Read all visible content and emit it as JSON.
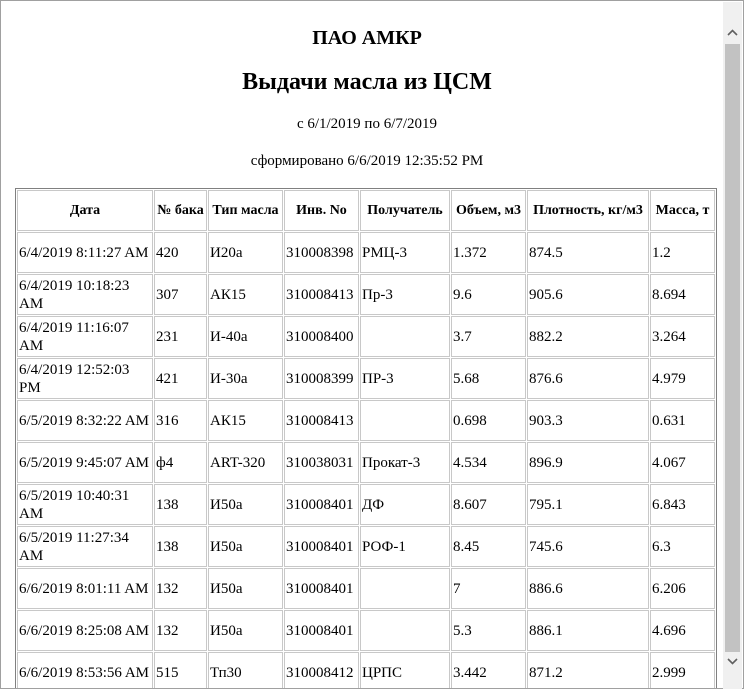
{
  "report": {
    "company": "ПАО АМКР",
    "title": "Выдачи масла из ЦСМ",
    "period": "с 6/1/2019 по 6/7/2019",
    "generated": "сформировано 6/6/2019 12:35:52 PM"
  },
  "table": {
    "columns": [
      "Дата",
      "№ бака",
      "Тип масла",
      "Инв. No",
      "Получатель",
      "Объем, м3",
      "Плотность, кг/м3",
      "Масса, т"
    ],
    "rows": [
      [
        "6/4/2019 8:11:27 AM",
        "420",
        "И20а",
        "310008398",
        "РМЦ-3",
        "1.372",
        "874.5",
        "1.2"
      ],
      [
        "6/4/2019 10:18:23 AM",
        "307",
        "АК15",
        "310008413",
        "Пр-3",
        "9.6",
        "905.6",
        "8.694"
      ],
      [
        "6/4/2019 11:16:07 AM",
        "231",
        "И-40а",
        "310008400",
        "",
        "3.7",
        "882.2",
        "3.264"
      ],
      [
        "6/4/2019 12:52:03 PM",
        "421",
        "И-30а",
        "310008399",
        "ПР-3",
        "5.68",
        "876.6",
        "4.979"
      ],
      [
        "6/5/2019 8:32:22 AM",
        "316",
        "АК15",
        "310008413",
        "",
        "0.698",
        "903.3",
        "0.631"
      ],
      [
        "6/5/2019 9:45:07 AM",
        "ф4",
        "ART-320",
        "310038031",
        "Прокат-3",
        "4.534",
        "896.9",
        "4.067"
      ],
      [
        "6/5/2019 10:40:31 AM",
        "138",
        "И50а",
        "310008401",
        "ДФ",
        "8.607",
        "795.1",
        "6.843"
      ],
      [
        "6/5/2019 11:27:34 AM",
        "138",
        "И50а",
        "310008401",
        "РОФ-1",
        "8.45",
        "745.6",
        "6.3"
      ],
      [
        "6/6/2019 8:01:11 AM",
        "132",
        "И50а",
        "310008401",
        "",
        "7",
        "886.6",
        "6.206"
      ],
      [
        "6/6/2019 8:25:08 AM",
        "132",
        "И50а",
        "310008401",
        "",
        "5.3",
        "886.1",
        "4.696"
      ],
      [
        "6/6/2019 8:53:56 AM",
        "515",
        "Тп30",
        "310008412",
        "ЦРПС",
        "3.442",
        "871.2",
        "2.999"
      ]
    ]
  },
  "scrollbar": {
    "up_icon": "chevron-up-icon",
    "down_icon": "chevron-down-icon"
  }
}
